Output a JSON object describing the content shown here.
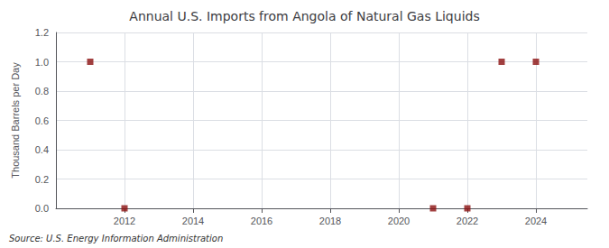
{
  "chart_data": {
    "type": "scatter",
    "title": "Annual U.S. Imports from Angola of Natural Gas Liquids",
    "ylabel": "Thousand Barrels per Day",
    "annotation": "Source: U.S. Energy Information Administration",
    "x": [
      2011,
      2012,
      2021,
      2022,
      2023,
      2024
    ],
    "values": [
      1.0,
      0.0,
      0.0,
      0.0,
      1.0,
      1.0
    ],
    "color": "#8b1010",
    "marker": "square",
    "xlim": [
      2010.0,
      2025.5
    ],
    "xticks": [
      2012,
      2014,
      2016,
      2018,
      2020,
      2022,
      2024
    ],
    "ylim": [
      0.0,
      1.2
    ],
    "yticks": [
      {
        "value": 0.0,
        "label": "0.0"
      },
      0.2,
      0.4,
      0.6,
      0.8,
      {
        "value": 1.0,
        "label": "1.0"
      },
      1.2
    ],
    "grid": true
  }
}
